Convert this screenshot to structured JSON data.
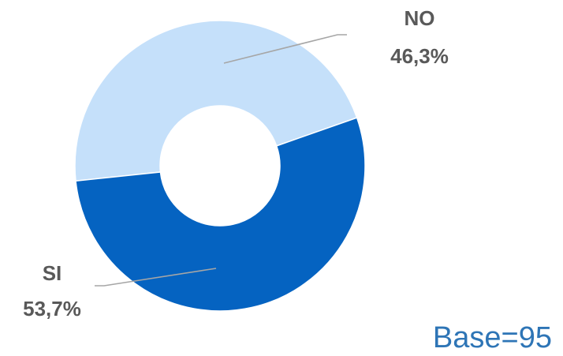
{
  "chart_data": {
    "type": "pie",
    "variant": "donut",
    "slices": [
      {
        "label": "NO",
        "value": 46.3,
        "value_label": "46,3%",
        "color": "#c5e0fa"
      },
      {
        "label": "SI",
        "value": 53.7,
        "value_label": "53,7%",
        "color": "#0563c1"
      }
    ],
    "leader_line_color": "#a6a6a6",
    "label_color": "#595959"
  },
  "footer": {
    "base_label": "Base=95",
    "base_color": "#2e75b6"
  }
}
